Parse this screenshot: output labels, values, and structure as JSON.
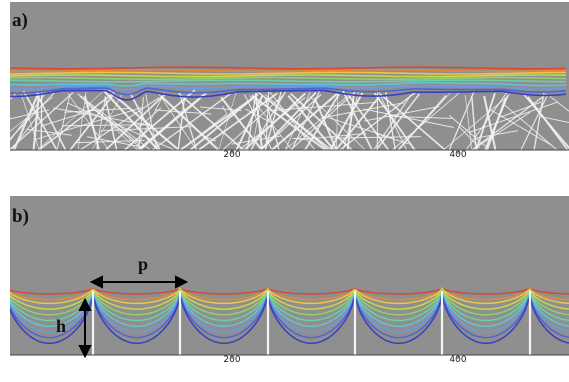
{
  "panels": [
    {
      "label": "a)",
      "ticks": [
        "200",
        "400"
      ]
    },
    {
      "label": "b)",
      "ticks": [
        "200",
        "400"
      ]
    }
  ],
  "annotations": {
    "period": "p",
    "height": "h"
  },
  "colors": {
    "background": "#8f8f8f",
    "contours": [
      "#d44a3a",
      "#e08a3a",
      "#e8c84a",
      "#c8d84a",
      "#8ed070",
      "#6ccfa8",
      "#62c2d8",
      "#6a9ae0",
      "#4f66d0",
      "#3a3ec0"
    ],
    "fibers": "#f4f4f4"
  }
}
